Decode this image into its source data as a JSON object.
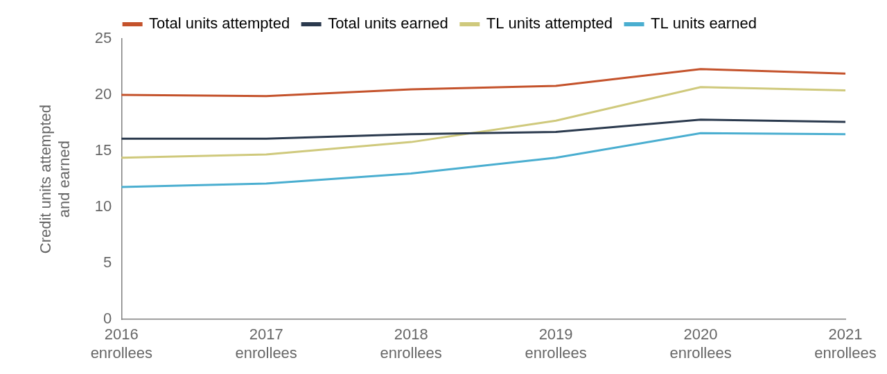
{
  "chart_data": {
    "type": "line",
    "y_label": "Credit units attempted and earned",
    "categories": [
      "2016 enrollees",
      "2017 enrollees",
      "2018 enrollees",
      "2019 enrollees",
      "2020 enrollees",
      "2021 enrollees"
    ],
    "series": [
      {
        "name": "Total units attempted",
        "color": "#c4522b",
        "values": [
          20.0,
          19.9,
          20.5,
          20.8,
          22.3,
          21.9
        ]
      },
      {
        "name": "Total units earned",
        "color": "#2b3a4e",
        "values": [
          16.1,
          16.1,
          16.5,
          16.7,
          17.8,
          17.6
        ]
      },
      {
        "name": "TL units attempted",
        "color": "#cfc97c",
        "values": [
          14.4,
          14.7,
          15.8,
          17.7,
          20.7,
          20.4
        ]
      },
      {
        "name": "TL units earned",
        "color": "#4aaed0",
        "values": [
          11.8,
          12.1,
          13.0,
          14.4,
          16.6,
          16.5
        ]
      }
    ],
    "ylim": [
      0,
      25
    ],
    "yticks": [
      0,
      5,
      10,
      15,
      20,
      25
    ],
    "grid": false,
    "legend": "top"
  }
}
